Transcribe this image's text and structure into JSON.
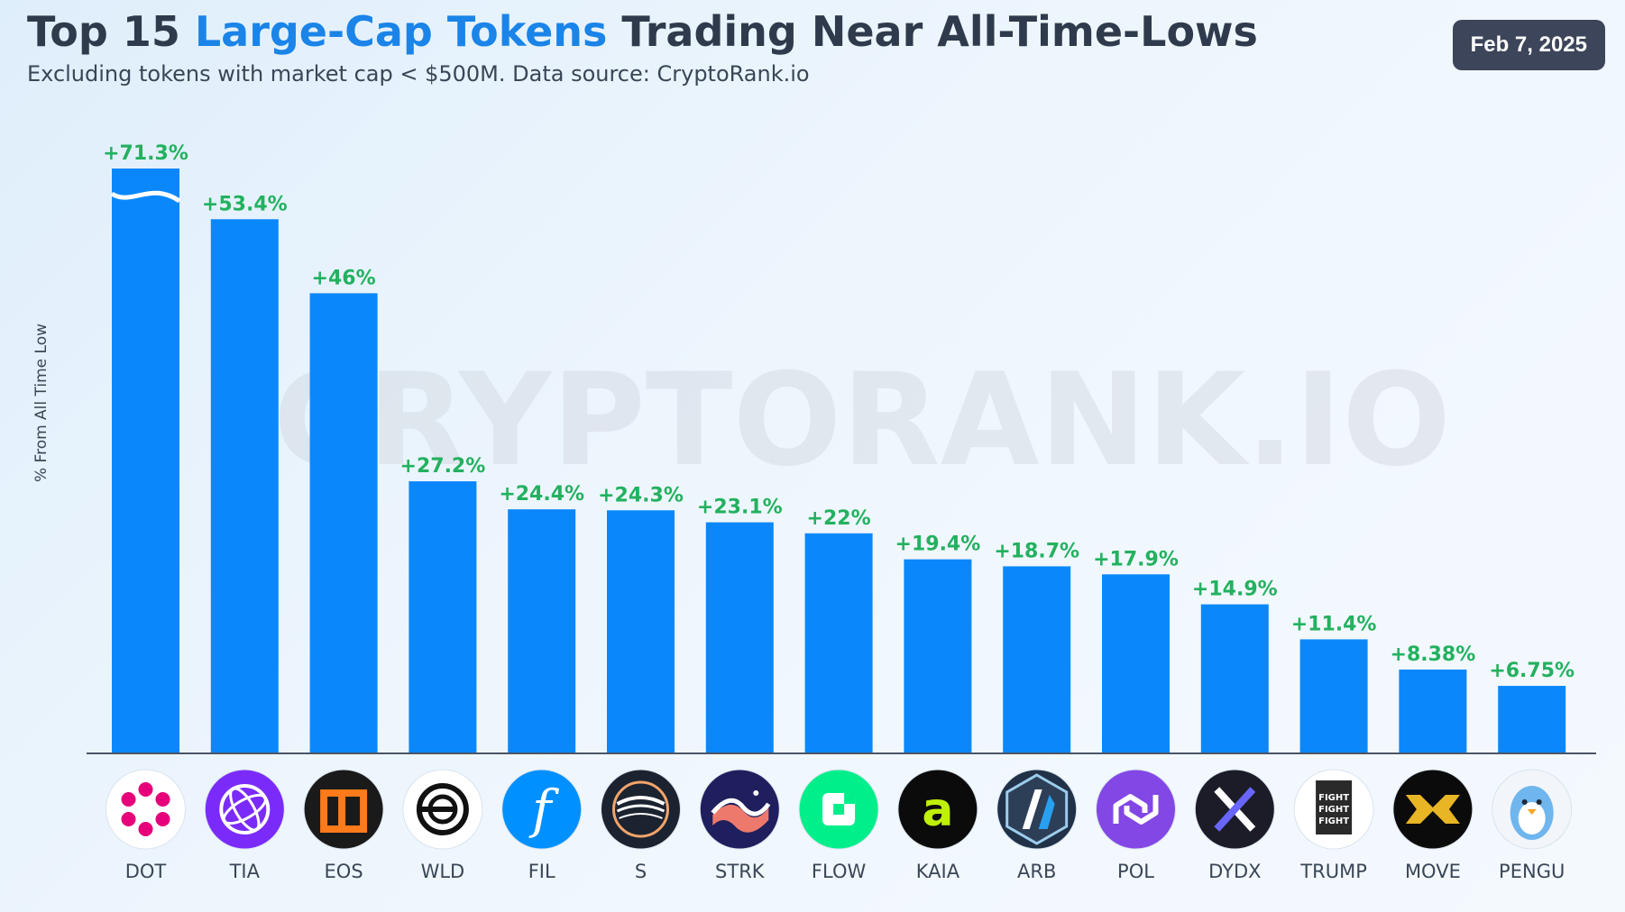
{
  "title": {
    "part1": "Top 15 ",
    "accent": "Large-Cap Tokens",
    "part2": " Trading Near All-Time-Lows"
  },
  "subtitle": "Excluding tokens with market cap < $500M. Data source: CryptoRank.io",
  "date": "Feb 7, 2025",
  "watermark": "CRYPTORANK.IO",
  "colors": {
    "bar": "#0a88fb",
    "label": "#23b15f",
    "title": "#2f3b4c",
    "accent": "#1a84e8",
    "badge": "#3c4559"
  },
  "chart_data": {
    "type": "bar",
    "title": "Top 15 Large-Cap Tokens Trading Near All-Time-Lows",
    "ylabel": "% From All Time Low",
    "xlabel": "",
    "categories": [
      "DOT",
      "TIA",
      "EOS",
      "WLD",
      "FIL",
      "S",
      "STRK",
      "FLOW",
      "KAIA",
      "ARB",
      "POL",
      "DYDX",
      "TRUMP",
      "MOVE",
      "PENGU"
    ],
    "values": [
      71.3,
      53.4,
      46,
      27.2,
      24.4,
      24.3,
      23.1,
      22,
      19.4,
      18.7,
      17.9,
      14.9,
      11.4,
      8.38,
      6.75
    ],
    "labels": [
      "+71.3%",
      "+53.4%",
      "+46%",
      "+27.2%",
      "+24.4%",
      "+24.3%",
      "+23.1%",
      "+22%",
      "+19.4%",
      "+18.7%",
      "+17.9%",
      "+14.9%",
      "+11.4%",
      "+8.38%",
      "+6.75%"
    ],
    "broken_axis": "DOT bar truncated",
    "grid": false,
    "icons": [
      {
        "name": "dot-logo-icon",
        "bg": "#ffffff",
        "fg": "#e6007a"
      },
      {
        "name": "tia-logo-icon",
        "bg": "#7b2bf9",
        "fg": "#ffffff"
      },
      {
        "name": "eos-logo-icon",
        "bg": "#1a1a1a",
        "fg": "#ff7a1a"
      },
      {
        "name": "wld-logo-icon",
        "bg": "#ffffff",
        "fg": "#111111"
      },
      {
        "name": "fil-logo-icon",
        "bg": "#0090ff",
        "fg": "#ffffff"
      },
      {
        "name": "s-logo-icon",
        "bg": "#1c2330",
        "fg": "#ffffff"
      },
      {
        "name": "strk-logo-icon",
        "bg": "#1f1f5e",
        "fg": "#ffffff"
      },
      {
        "name": "flow-logo-icon",
        "bg": "#00ef8b",
        "fg": "#ffffff"
      },
      {
        "name": "kaia-logo-icon",
        "bg": "#0b0b0b",
        "fg": "#bff009"
      },
      {
        "name": "arb-logo-icon",
        "bg": "#213147",
        "fg": "#ffffff"
      },
      {
        "name": "pol-logo-icon",
        "bg": "#8247e5",
        "fg": "#ffffff"
      },
      {
        "name": "dydx-logo-icon",
        "bg": "#1c1c28",
        "fg": "#ffffff"
      },
      {
        "name": "trump-logo-icon",
        "bg": "#ffffff",
        "fg": "#222222"
      },
      {
        "name": "move-logo-icon",
        "bg": "#0b0b0b",
        "fg": "#e8b524"
      },
      {
        "name": "pengu-logo-icon",
        "bg": "#f2f6fb",
        "fg": "#6fb6ee"
      }
    ]
  }
}
